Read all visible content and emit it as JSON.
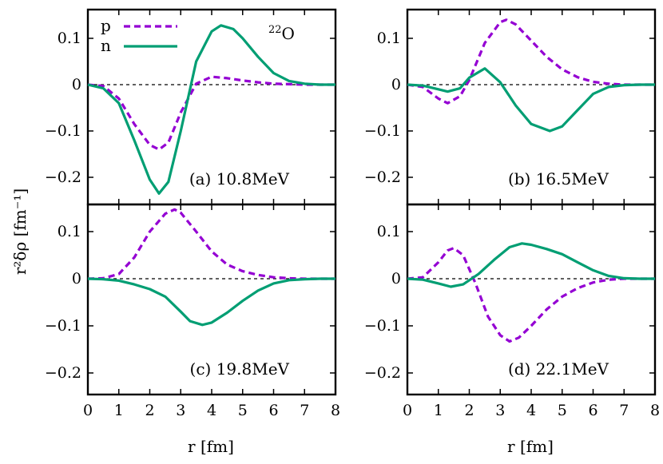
{
  "figure": {
    "ylabel": "r²δρ [fm⁻¹]",
    "xlabel_left": "r [fm]",
    "xlabel_right": "r [fm]",
    "nucleus_label_mass": "22",
    "nucleus_label_symbol": "O"
  },
  "legend": {
    "proton_label": "p",
    "neutron_label": "n"
  },
  "colors": {
    "proton": "#9400D3",
    "neutron": "#009E73"
  },
  "chart_data": [
    {
      "type": "line",
      "panel": "(a) 10.8MeV",
      "xlim": [
        0,
        8
      ],
      "ylim": [
        -0.25,
        0.16
      ],
      "xticks": [
        "0",
        "1",
        "2",
        "3",
        "4",
        "5",
        "6",
        "7",
        "8"
      ],
      "yticks": [
        "−0.2",
        "−0.1",
        "0",
        "0.1"
      ],
      "series": [
        {
          "name": "p",
          "style": "dashed",
          "x": [
            0,
            0.5,
            1,
            1.5,
            2,
            2.3,
            2.6,
            3,
            3.5,
            4,
            4.5,
            5,
            5.5,
            6,
            6.5,
            7,
            7.5,
            8
          ],
          "y": [
            0,
            -0.003,
            -0.03,
            -0.085,
            -0.13,
            -0.14,
            -0.125,
            -0.06,
            0.002,
            0.017,
            0.014,
            0.009,
            0.005,
            0.002,
            0.001,
            0,
            0,
            0
          ]
        },
        {
          "name": "n",
          "style": "solid",
          "x": [
            0,
            0.5,
            1,
            1.5,
            2,
            2.3,
            2.6,
            3,
            3.5,
            4,
            4.3,
            4.7,
            5,
            5.5,
            6,
            6.5,
            7,
            7.5,
            8
          ],
          "y": [
            0,
            -0.008,
            -0.04,
            -0.12,
            -0.205,
            -0.235,
            -0.21,
            -0.1,
            0.05,
            0.115,
            0.128,
            0.12,
            0.1,
            0.06,
            0.025,
            0.008,
            0.002,
            0,
            0
          ]
        }
      ]
    },
    {
      "type": "line",
      "panel": "(b) 16.5MeV",
      "xlim": [
        0,
        8
      ],
      "ylim": [
        -0.25,
        0.16
      ],
      "xticks": [
        "0",
        "1",
        "2",
        "3",
        "4",
        "5",
        "6",
        "7",
        "8"
      ],
      "yticks": [
        "−0.2",
        "−0.1",
        "0",
        "0.1"
      ],
      "series": [
        {
          "name": "p",
          "style": "dashed",
          "x": [
            0,
            0.5,
            1,
            1.3,
            1.7,
            2,
            2.5,
            3,
            3.2,
            3.5,
            4,
            4.5,
            5,
            5.5,
            6,
            6.5,
            7,
            7.5,
            8
          ],
          "y": [
            0,
            -0.005,
            -0.03,
            -0.04,
            -0.025,
            0.01,
            0.09,
            0.135,
            0.14,
            0.13,
            0.095,
            0.06,
            0.033,
            0.016,
            0.006,
            0.002,
            0,
            0,
            0
          ]
        },
        {
          "name": "n",
          "style": "solid",
          "x": [
            0,
            0.5,
            1,
            1.3,
            1.7,
            2,
            2.5,
            3,
            3.5,
            4,
            4.6,
            5,
            5.5,
            6,
            6.5,
            7,
            7.5,
            8
          ],
          "y": [
            0,
            -0.002,
            -0.01,
            -0.015,
            -0.008,
            0.015,
            0.035,
            0.005,
            -0.045,
            -0.085,
            -0.1,
            -0.09,
            -0.055,
            -0.02,
            -0.005,
            -0.001,
            0,
            0
          ]
        }
      ]
    },
    {
      "type": "line",
      "panel": "(c) 19.8MeV",
      "xlim": [
        0,
        8
      ],
      "ylim": [
        -0.25,
        0.16
      ],
      "xticks": [
        "0",
        "1",
        "2",
        "3",
        "4",
        "5",
        "6",
        "7",
        "8"
      ],
      "yticks": [
        "−0.2",
        "−0.1",
        "0",
        "0.1"
      ],
      "series": [
        {
          "name": "p",
          "style": "dashed",
          "x": [
            0,
            0.5,
            1,
            1.5,
            2,
            2.5,
            2.8,
            3,
            3.5,
            4,
            4.5,
            5,
            5.5,
            6,
            6.5,
            7,
            7.5,
            8
          ],
          "y": [
            0,
            0.001,
            0.01,
            0.045,
            0.1,
            0.138,
            0.147,
            0.14,
            0.1,
            0.058,
            0.03,
            0.016,
            0.008,
            0.003,
            0.001,
            0,
            0,
            0
          ]
        },
        {
          "name": "n",
          "style": "solid",
          "x": [
            0,
            0.5,
            1,
            1.5,
            2,
            2.5,
            3,
            3.3,
            3.7,
            4,
            4.5,
            5,
            5.5,
            6,
            6.5,
            7,
            7.5,
            8
          ],
          "y": [
            0,
            -0.001,
            -0.004,
            -0.012,
            -0.022,
            -0.038,
            -0.07,
            -0.09,
            -0.098,
            -0.093,
            -0.072,
            -0.047,
            -0.025,
            -0.01,
            -0.003,
            -0.001,
            0,
            0
          ]
        }
      ]
    },
    {
      "type": "line",
      "panel": "(d) 22.1MeV",
      "xlim": [
        0,
        8
      ],
      "ylim": [
        -0.25,
        0.16
      ],
      "xticks": [
        "0",
        "1",
        "2",
        "3",
        "4",
        "5",
        "6",
        "7",
        "8"
      ],
      "yticks": [
        "−0.2",
        "−0.1",
        "0",
        "0.1"
      ],
      "series": [
        {
          "name": "p",
          "style": "dashed",
          "x": [
            0,
            0.5,
            1,
            1.3,
            1.5,
            1.8,
            2.2,
            2.6,
            3,
            3.3,
            3.6,
            4,
            4.5,
            5,
            5.5,
            6,
            6.5,
            7,
            7.5,
            8
          ],
          "y": [
            0,
            0.003,
            0.035,
            0.06,
            0.065,
            0.05,
            -0.01,
            -0.08,
            -0.12,
            -0.133,
            -0.125,
            -0.1,
            -0.065,
            -0.038,
            -0.02,
            -0.008,
            -0.002,
            0,
            0,
            0
          ]
        },
        {
          "name": "n",
          "style": "solid",
          "x": [
            0,
            0.5,
            1,
            1.4,
            1.8,
            2.3,
            2.8,
            3.3,
            3.7,
            4,
            4.5,
            5,
            5.5,
            6,
            6.5,
            7,
            7.5,
            8
          ],
          "y": [
            0,
            -0.002,
            -0.01,
            -0.017,
            -0.012,
            0.01,
            0.04,
            0.067,
            0.075,
            0.072,
            0.063,
            0.052,
            0.035,
            0.018,
            0.006,
            0.001,
            0,
            0
          ]
        }
      ]
    }
  ]
}
